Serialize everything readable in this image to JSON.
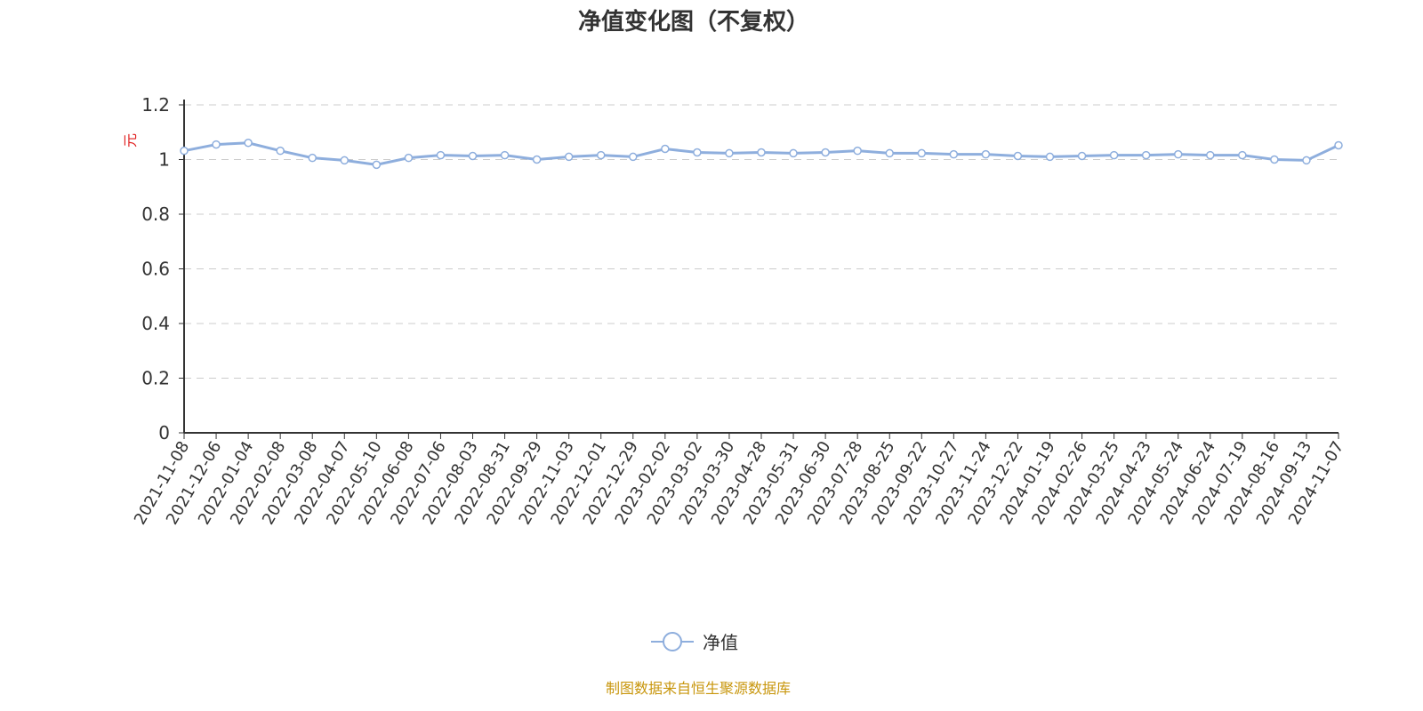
{
  "chart_data": {
    "type": "line",
    "title": "净值变化图（不复权）",
    "ylabel": "元",
    "ylim": [
      0,
      1.2
    ],
    "yticks": [
      "0",
      "0.2",
      "0.4",
      "0.6",
      "0.8",
      "1",
      "1.2"
    ],
    "grid": true,
    "legend_placement": "bottom",
    "series": [
      {
        "name": "净值",
        "color": "#8eaedd",
        "x": [
          "2021-11-08",
          "2021-12-06",
          "2022-01-04",
          "2022-02-08",
          "2022-03-08",
          "2022-04-07",
          "2022-05-10",
          "2022-06-08",
          "2022-07-06",
          "2022-08-03",
          "2022-08-31",
          "2022-09-29",
          "2022-11-03",
          "2022-12-01",
          "2022-12-29",
          "2023-02-02",
          "2023-03-02",
          "2023-03-30",
          "2023-04-28",
          "2023-05-31",
          "2023-06-30",
          "2023-07-28",
          "2023-08-25",
          "2023-09-22",
          "2023-10-27",
          "2023-11-24",
          "2023-12-22",
          "2024-01-19",
          "2024-02-26",
          "2024-03-25",
          "2024-04-23",
          "2024-05-24",
          "2024-06-24",
          "2024-07-19",
          "2024-08-16",
          "2024-09-13",
          "2024-11-07"
        ],
        "values": [
          1.032,
          1.055,
          1.061,
          1.032,
          1.006,
          0.997,
          0.981,
          1.006,
          1.016,
          1.013,
          1.016,
          1.0,
          1.01,
          1.016,
          1.01,
          1.039,
          1.026,
          1.023,
          1.026,
          1.023,
          1.026,
          1.032,
          1.023,
          1.023,
          1.019,
          1.019,
          1.013,
          1.01,
          1.013,
          1.016,
          1.016,
          1.019,
          1.016,
          1.016,
          1.0,
          0.997,
          1.052
        ]
      }
    ],
    "source": "制图数据来自恒生聚源数据库"
  }
}
